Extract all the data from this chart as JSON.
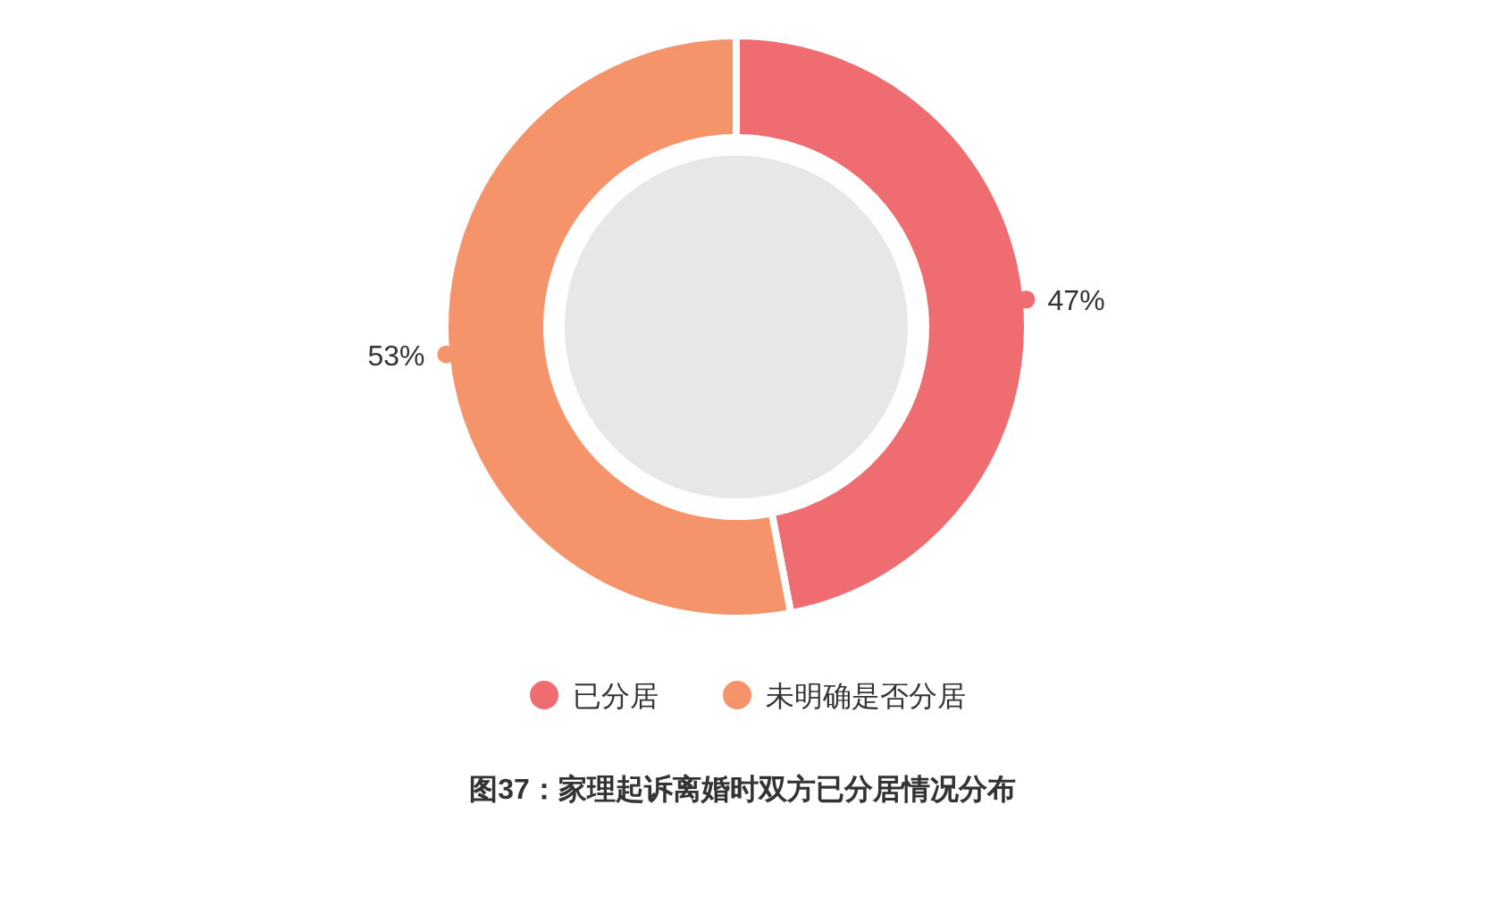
{
  "chart_data": {
    "type": "donut",
    "title": "图37：家理起诉离婚时双方已分居情况分布",
    "categories": [
      "已分居",
      "未明确是否分居"
    ],
    "values": [
      47,
      53
    ],
    "colors": [
      "#ef6c70",
      "#f5936b"
    ],
    "value_labels": [
      "47%",
      "53%"
    ],
    "legend": "bottom"
  }
}
